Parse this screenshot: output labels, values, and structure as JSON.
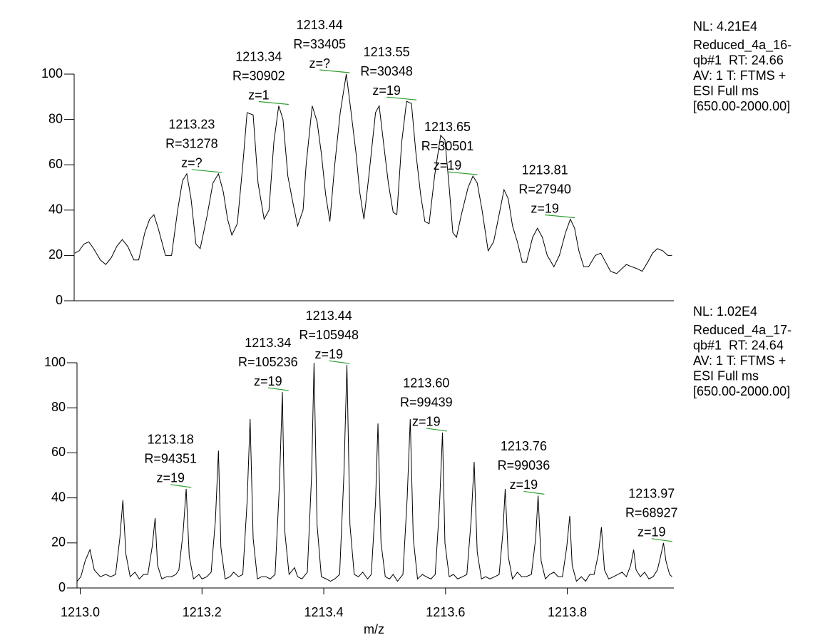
{
  "chart_data": [
    {
      "type": "line",
      "color": "#000000",
      "annotation_color": "#2e9e2e",
      "info": [
        "NL: 4.21E4",
        "Reduced_4a_16-",
        "qb#1  RT: 24.66",
        "AV: 1 T: FTMS +",
        "ESI Full ms",
        "[650.00-2000.00]"
      ],
      "xlim": [
        1212.99,
        1213.975
      ],
      "ylim": [
        0,
        100
      ],
      "yticks": [
        0,
        20,
        40,
        60,
        80,
        100
      ],
      "x": [
        1212.991,
        1212.998,
        1213.006,
        1213.014,
        1213.022,
        1213.033,
        1213.042,
        1213.051,
        1213.06,
        1213.069,
        1213.078,
        1213.088,
        1213.096,
        1213.106,
        1213.114,
        1213.121,
        1213.128,
        1213.14,
        1213.15,
        1213.16,
        1213.168,
        1213.175,
        1213.182,
        1213.19,
        1213.197,
        1213.208,
        1213.218,
        1213.227,
        1213.235,
        1213.242,
        1213.249,
        1213.258,
        1213.267,
        1213.274,
        1213.284,
        1213.292,
        1213.302,
        1213.31,
        1213.318,
        1213.326,
        1213.333,
        1213.341,
        1213.348,
        1213.357,
        1213.366,
        1213.371,
        1213.381,
        1213.389,
        1213.396,
        1213.403,
        1213.41,
        1213.418,
        1213.427,
        1213.437,
        1213.444,
        1213.453,
        1213.459,
        1213.466,
        1213.474,
        1213.485,
        1213.491,
        1213.498,
        1213.506,
        1213.514,
        1213.52,
        1213.528,
        1213.536,
        1213.544,
        1213.551,
        1213.559,
        1213.566,
        1213.573,
        1213.582,
        1213.592,
        1213.599,
        1213.606,
        1213.612,
        1213.618,
        1213.626,
        1213.637,
        1213.645,
        1213.652,
        1213.66,
        1213.67,
        1213.679,
        1213.688,
        1213.696,
        1213.703,
        1213.71,
        1213.718,
        1213.726,
        1213.733,
        1213.743,
        1213.751,
        1213.759,
        1213.767,
        1213.778,
        1213.787,
        1213.797,
        1213.805,
        1213.812,
        1213.819,
        1213.827,
        1213.835,
        1213.846,
        1213.855,
        1213.863,
        1213.871,
        1213.881,
        1213.889,
        1213.897,
        1213.906,
        1213.916,
        1213.923,
        1213.932,
        1213.94,
        1213.948,
        1213.957,
        1213.965,
        1213.972
      ],
      "values": [
        21,
        22,
        25,
        26,
        23,
        18,
        16,
        19,
        24,
        27,
        24,
        18,
        18,
        30,
        36,
        38,
        32,
        20,
        20,
        40,
        53,
        56,
        45,
        25,
        23,
        37,
        52,
        56,
        48,
        36,
        29,
        34,
        60,
        83,
        82,
        52,
        36,
        40,
        70,
        86,
        80,
        55,
        45,
        33,
        40,
        60,
        86,
        79,
        65,
        47,
        35,
        60,
        83,
        100,
        85,
        65,
        48,
        36,
        55,
        83,
        86,
        70,
        52,
        39,
        38,
        70,
        88,
        87,
        66,
        47,
        35,
        34,
        55,
        73,
        71,
        50,
        30,
        28,
        38,
        50,
        55,
        52,
        40,
        22,
        26,
        38,
        49,
        45,
        33,
        26,
        17,
        17,
        28,
        32,
        28,
        20,
        15,
        20,
        30,
        36,
        32,
        22,
        15,
        15,
        20,
        21,
        17,
        13,
        12,
        14,
        16,
        15,
        14,
        13,
        17,
        21,
        23,
        22,
        20,
        20
      ],
      "annotations": [
        {
          "x": 1213.23,
          "y": 56,
          "label": "1213.23",
          "resolution": "R=31278",
          "charge": "z=?"
        },
        {
          "x": 1213.34,
          "y": 86,
          "label": "1213.34",
          "resolution": "R=30902",
          "charge": "z=1"
        },
        {
          "x": 1213.44,
          "y": 100,
          "label": "1213.44",
          "resolution": "R=33405",
          "charge": "z=?"
        },
        {
          "x": 1213.55,
          "y": 88,
          "label": "1213.55",
          "resolution": "R=30348",
          "charge": "z=19"
        },
        {
          "x": 1213.65,
          "y": 55,
          "label": "1213.65",
          "resolution": "R=30501",
          "charge": "z=19"
        },
        {
          "x": 1213.81,
          "y": 36,
          "label": "1213.81",
          "resolution": "R=27940",
          "charge": "z=19"
        }
      ]
    },
    {
      "type": "line",
      "color": "#000000",
      "annotation_color": "#2e9e2e",
      "info": [
        "NL: 1.02E4",
        "Reduced_4a_17-",
        "qb#1  RT: 24.64",
        "AV: 1 T: FTMS +",
        "ESI Full ms",
        "[650.00-2000.00]"
      ],
      "xlabel": "m/z",
      "xlim": [
        1212.99,
        1213.975
      ],
      "ylim": [
        0,
        100
      ],
      "yticks": [
        0,
        20,
        40,
        60,
        80,
        100
      ],
      "xticks": [
        {
          "value": 1213,
          "label": "1213.0"
        },
        1213.2,
        1213.4,
        1213.6,
        1213.8
      ],
      "x": [
        1212.995,
        1213.001,
        1213.008,
        1213.016,
        1213.023,
        1213.033,
        1213.042,
        1213.05,
        1213.058,
        1213.065,
        1213.07,
        1213.075,
        1213.082,
        1213.09,
        1213.097,
        1213.104,
        1213.111,
        1213.118,
        1213.123,
        1213.127,
        1213.134,
        1213.142,
        1213.15,
        1213.157,
        1213.162,
        1213.169,
        1213.174,
        1213.179,
        1213.186,
        1213.195,
        1213.2,
        1213.208,
        1213.215,
        1213.222,
        1213.227,
        1213.231,
        1213.238,
        1213.246,
        1213.252,
        1213.26,
        1213.267,
        1213.274,
        1213.279,
        1213.284,
        1213.291,
        1213.298,
        1213.305,
        1213.312,
        1213.32,
        1213.327,
        1213.332,
        1213.336,
        1213.343,
        1213.352,
        1213.357,
        1213.364,
        1213.373,
        1213.38,
        1213.384,
        1213.389,
        1213.396,
        1213.404,
        1213.411,
        1213.418,
        1213.426,
        1213.433,
        1213.438,
        1213.443,
        1213.45,
        1213.457,
        1213.464,
        1213.472,
        1213.478,
        1213.485,
        1213.489,
        1213.494,
        1213.501,
        1213.508,
        1213.514,
        1213.521,
        1213.53,
        1213.537,
        1213.542,
        1213.547,
        1213.554,
        1213.562,
        1213.568,
        1213.576,
        1213.583,
        1213.59,
        1213.595,
        1213.599,
        1213.606,
        1213.613,
        1213.62,
        1213.628,
        1213.635,
        1213.642,
        1213.647,
        1213.652,
        1213.659,
        1213.666,
        1213.673,
        1213.681,
        1213.688,
        1213.694,
        1213.698,
        1213.703,
        1213.71,
        1213.718,
        1213.725,
        1213.732,
        1213.741,
        1213.748,
        1213.752,
        1213.757,
        1213.764,
        1213.771,
        1213.778,
        1213.785,
        1213.792,
        1213.799,
        1213.804,
        1213.808,
        1213.815,
        1213.823,
        1213.83,
        1213.837,
        1213.844,
        1213.851,
        1213.856,
        1213.861,
        1213.868,
        1213.876,
        1213.883,
        1213.89,
        1213.897,
        1213.904,
        1213.909,
        1213.913,
        1213.92,
        1213.927,
        1213.934,
        1213.941,
        1213.948,
        1213.954,
        1213.958,
        1213.962,
        1213.968,
        1213.972
      ],
      "values": [
        3,
        5,
        12,
        17,
        8,
        5,
        6,
        5,
        6,
        22,
        39,
        15,
        5,
        7,
        4,
        6,
        6,
        18,
        31,
        10,
        4,
        5,
        5,
        6,
        8,
        25,
        44,
        14,
        4,
        6,
        4,
        5,
        7,
        30,
        61,
        18,
        4,
        5,
        7,
        5,
        6,
        38,
        75,
        22,
        4,
        5,
        5,
        4,
        6,
        45,
        87,
        25,
        6,
        9,
        5,
        4,
        7,
        50,
        100,
        28,
        5,
        4,
        3,
        4,
        6,
        50,
        99,
        28,
        6,
        5,
        7,
        4,
        6,
        38,
        73,
        20,
        5,
        4,
        6,
        3,
        6,
        40,
        75,
        22,
        4,
        6,
        5,
        4,
        6,
        36,
        69,
        20,
        5,
        6,
        4,
        5,
        6,
        30,
        56,
        16,
        4,
        5,
        4,
        5,
        6,
        24,
        44,
        14,
        4,
        7,
        5,
        5,
        6,
        22,
        41,
        12,
        4,
        6,
        7,
        5,
        5,
        18,
        32,
        10,
        3,
        5,
        3,
        6,
        6,
        15,
        27,
        8,
        4,
        5,
        6,
        7,
        5,
        10,
        17,
        8,
        5,
        7,
        4,
        5,
        8,
        15,
        20,
        12,
        6,
        5
      ],
      "annotations": [
        {
          "x": 1213.18,
          "y": 44,
          "label": "1213.18",
          "resolution": "R=94351",
          "charge": "z=19"
        },
        {
          "x": 1213.34,
          "y": 87,
          "label": "1213.34",
          "resolution": "R=105236",
          "charge": "z=19"
        },
        {
          "x": 1213.44,
          "y": 99,
          "label": "1213.44",
          "resolution": "R=105948",
          "charge": "z=19"
        },
        {
          "x": 1213.6,
          "y": 69,
          "label": "1213.60",
          "resolution": "R=99439",
          "charge": "z=19"
        },
        {
          "x": 1213.76,
          "y": 41,
          "label": "1213.76",
          "resolution": "R=99036",
          "charge": "z=19"
        },
        {
          "x": 1213.97,
          "y": 20,
          "label": "1213.97",
          "resolution": "R=68927",
          "charge": "z=19"
        }
      ]
    }
  ]
}
